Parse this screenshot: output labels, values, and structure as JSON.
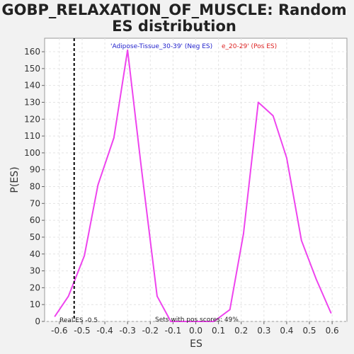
{
  "chart_data": {
    "type": "line",
    "title_lines": [
      "GOBP_RELAXATION_OF_MUSCLE: Random",
      "ES distribution"
    ],
    "xlabel": "ES",
    "ylabel": "P(ES)",
    "xlim": [
      -0.665,
      0.665
    ],
    "ylim": [
      0,
      168
    ],
    "xticks": [
      -0.6,
      -0.5,
      -0.4,
      -0.3,
      -0.2,
      -0.1,
      0.0,
      0.1,
      0.2,
      0.3,
      0.4,
      0.5,
      0.6
    ],
    "xtick_labels": [
      "-0.6",
      "-0.5",
      "-0.4",
      "-0.3",
      "-0.2",
      "-0.1",
      "0.0",
      "0.1",
      "0.2",
      "0.3",
      "0.4",
      "0.5",
      "0.6"
    ],
    "yticks": [
      0,
      10,
      20,
      30,
      40,
      50,
      60,
      70,
      80,
      90,
      100,
      110,
      120,
      130,
      140,
      150,
      160
    ],
    "ytick_labels": [
      "0",
      "10",
      "20",
      "30",
      "40",
      "50",
      "60",
      "70",
      "80",
      "90",
      "100",
      "110",
      "120",
      "130",
      "140",
      "150",
      "160"
    ],
    "grid": true,
    "series": [
      {
        "color": "#ee44ee",
        "x": [
          -0.62,
          -0.56,
          -0.49,
          -0.43,
          -0.36,
          -0.3,
          -0.24,
          -0.17,
          -0.11,
          -0.05,
          0.02,
          0.08,
          0.15,
          0.21,
          0.275,
          0.34,
          0.4,
          0.465,
          0.53,
          0.595
        ],
        "y": [
          3,
          15,
          39,
          81,
          109,
          161,
          92,
          15,
          0,
          0,
          0,
          0,
          7,
          52,
          130,
          122,
          97,
          48,
          25,
          5
        ]
      }
    ],
    "real_es": {
      "x": -0.535,
      "label": "Real ES -0.5"
    },
    "sets_annotation": "Sets with pos scores: 49%",
    "legend": {
      "neg_label": "'Adipose-Tissue_30-39' (Neg ES)",
      "neg_color": "#2222cc",
      "pos_label": "e_20-29' (Pos ES)",
      "pos_color": "#dd2222"
    }
  }
}
